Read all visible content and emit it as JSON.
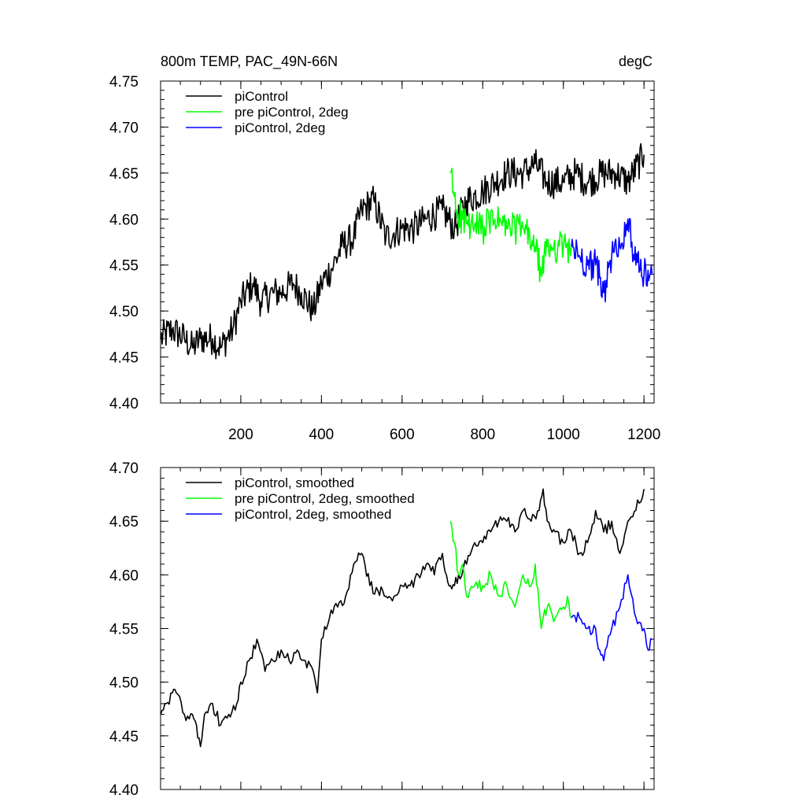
{
  "chart_data": [
    {
      "type": "line",
      "title_left": "800m TEMP, PAC_49N-66N",
      "title_right": "degC",
      "xlabel": "",
      "ylabel": "",
      "xlim": [
        1,
        1225
      ],
      "ylim": [
        4.4,
        4.75
      ],
      "xtick_values": [
        200,
        400,
        600,
        800,
        1000,
        1200
      ],
      "xtick_labels": [
        "200",
        "400",
        "600",
        "800",
        "1000",
        "1200"
      ],
      "ytick_values": [
        4.4,
        4.45,
        4.5,
        4.55,
        4.6,
        4.65,
        4.7,
        4.75
      ],
      "ytick_labels": [
        "4.40",
        "4.45",
        "4.50",
        "4.55",
        "4.60",
        "4.65",
        "4.70",
        "4.75"
      ],
      "legend_position": "top-left",
      "series": [
        {
          "name": "piControl",
          "color": "#000000",
          "x": [
            1,
            30,
            60,
            80,
            100,
            130,
            150,
            180,
            200,
            230,
            250,
            280,
            300,
            330,
            350,
            380,
            400,
            430,
            450,
            480,
            500,
            530,
            560,
            600,
            630,
            660,
            700,
            730,
            760,
            800,
            830,
            860,
            900,
            930,
            960,
            1000,
            1030,
            1060,
            1100,
            1130,
            1160,
            1200
          ],
          "values": [
            4.47,
            4.48,
            4.47,
            4.46,
            4.47,
            4.47,
            4.46,
            4.48,
            4.51,
            4.53,
            4.51,
            4.52,
            4.52,
            4.53,
            4.52,
            4.5,
            4.53,
            4.55,
            4.57,
            4.58,
            4.61,
            4.62,
            4.58,
            4.59,
            4.59,
            4.6,
            4.61,
            4.59,
            4.62,
            4.63,
            4.64,
            4.65,
            4.65,
            4.66,
            4.64,
            4.64,
            4.65,
            4.64,
            4.65,
            4.65,
            4.64,
            4.67
          ]
        },
        {
          "name": "pre piControl, 2deg",
          "color": "#00ff00",
          "x": [
            720,
            735,
            750,
            770,
            800,
            830,
            860,
            900,
            930,
            945,
            960,
            1000,
            1020
          ],
          "values": [
            4.65,
            4.61,
            4.6,
            4.59,
            4.59,
            4.6,
            4.59,
            4.59,
            4.57,
            4.54,
            4.57,
            4.57,
            4.57
          ]
        },
        {
          "name": "piControl, 2deg",
          "color": "#0000ff",
          "x": [
            1020,
            1040,
            1060,
            1080,
            1100,
            1120,
            1140,
            1160,
            1180,
            1200,
            1220
          ],
          "values": [
            4.57,
            4.56,
            4.55,
            4.55,
            4.52,
            4.56,
            4.57,
            4.6,
            4.55,
            4.54,
            4.54
          ]
        }
      ]
    },
    {
      "type": "line",
      "title_left": "",
      "title_right": "",
      "xlabel": "",
      "ylabel": "",
      "xlim": [
        1,
        1225
      ],
      "ylim": [
        4.4,
        4.7
      ],
      "xtick_values": [
        200,
        400,
        600,
        800,
        1000,
        1200
      ],
      "xtick_labels": [],
      "ytick_values": [
        4.4,
        4.45,
        4.5,
        4.55,
        4.6,
        4.65,
        4.7
      ],
      "ytick_labels": [
        "4.40",
        "4.45",
        "4.50",
        "4.55",
        "4.60",
        "4.65",
        "4.70"
      ],
      "legend_position": "top-left",
      "series": [
        {
          "name": "piControl, smoothed",
          "color": "#000000",
          "x": [
            1,
            15,
            30,
            40,
            60,
            80,
            90,
            100,
            110,
            130,
            150,
            170,
            190,
            200,
            220,
            240,
            260,
            280,
            300,
            320,
            340,
            360,
            380,
            390,
            400,
            420,
            440,
            460,
            480,
            500,
            520,
            560,
            580,
            600,
            620,
            640,
            660,
            680,
            700,
            710,
            720,
            730,
            740,
            760,
            780,
            800,
            820,
            840,
            860,
            880,
            900,
            920,
            940,
            950,
            960,
            980,
            1000,
            1020,
            1040,
            1060,
            1080,
            1100,
            1120,
            1140,
            1160,
            1180,
            1200
          ],
          "values": [
            4.47,
            4.48,
            4.49,
            4.49,
            4.47,
            4.47,
            4.46,
            4.44,
            4.47,
            4.48,
            4.46,
            4.47,
            4.48,
            4.5,
            4.52,
            4.54,
            4.51,
            4.52,
            4.53,
            4.52,
            4.53,
            4.52,
            4.51,
            4.49,
            4.54,
            4.56,
            4.57,
            4.58,
            4.61,
            4.62,
            4.59,
            4.58,
            4.58,
            4.59,
            4.59,
            4.6,
            4.61,
            4.6,
            4.62,
            4.6,
            4.59,
            4.59,
            4.6,
            4.61,
            4.63,
            4.63,
            4.64,
            4.65,
            4.65,
            4.64,
            4.66,
            4.65,
            4.66,
            4.68,
            4.65,
            4.64,
            4.63,
            4.64,
            4.62,
            4.63,
            4.66,
            4.64,
            4.65,
            4.62,
            4.65,
            4.66,
            4.68
          ]
        },
        {
          "name": "pre piControl, 2deg, smoothed",
          "color": "#00ff00",
          "x": [
            720,
            730,
            740,
            750,
            760,
            780,
            800,
            820,
            840,
            860,
            880,
            900,
            920,
            930,
            940,
            945,
            950,
            960,
            980,
            1000,
            1010,
            1020
          ],
          "values": [
            4.65,
            4.63,
            4.6,
            4.61,
            4.58,
            4.59,
            4.59,
            4.6,
            4.58,
            4.59,
            4.57,
            4.6,
            4.59,
            4.61,
            4.57,
            4.55,
            4.56,
            4.57,
            4.56,
            4.57,
            4.58,
            4.56
          ]
        },
        {
          "name": "piControl, 2deg, smoothed",
          "color": "#0000ff",
          "x": [
            1020,
            1040,
            1060,
            1080,
            1090,
            1100,
            1120,
            1140,
            1160,
            1180,
            1200,
            1210,
            1220
          ],
          "values": [
            4.56,
            4.56,
            4.55,
            4.55,
            4.53,
            4.52,
            4.55,
            4.57,
            4.6,
            4.56,
            4.55,
            4.53,
            4.54
          ]
        }
      ]
    }
  ]
}
